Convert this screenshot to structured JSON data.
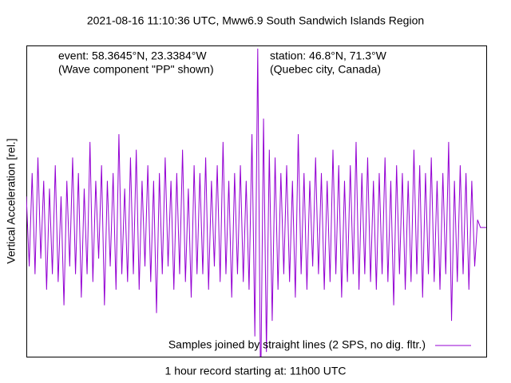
{
  "chart_data": {
    "type": "line",
    "title": "2021-08-16 11:10:36 UTC, Mww6.9 South Sandwich Islands Region",
    "xlabel": "1 hour record starting at: 11h00 UTC",
    "ylabel": "Vertical Acceleration [rel.]",
    "annotations": [
      "event: 58.3645°N, 23.3384°W",
      "(Wave component \"PP\" shown)",
      "station: 46.8°N, 71.3°W",
      "(Quebec city, Canada)"
    ],
    "ylim": [
      -0.83,
      1.17
    ],
    "legend": "lower right",
    "series": [
      {
        "name": "Samples joined by straight lines (2 SPS, no dig. fltr.)",
        "color": "#9400d3",
        "values": [
          0.2,
          -0.25,
          0.35,
          -0.3,
          0.45,
          -0.2,
          0.3,
          -0.4,
          0.25,
          -0.3,
          0.4,
          -0.35,
          0.2,
          -0.5,
          0.3,
          -0.25,
          0.45,
          -0.3,
          0.35,
          -0.45,
          0.25,
          -0.3,
          0.55,
          -0.35,
          0.3,
          -0.2,
          0.4,
          -0.5,
          0.3,
          -0.25,
          0.35,
          -0.4,
          0.6,
          -0.3,
          0.25,
          -0.35,
          0.45,
          -0.3,
          0.5,
          -0.4,
          0.3,
          -0.25,
          0.4,
          -0.35,
          0.3,
          -0.55,
          0.35,
          -0.3,
          0.45,
          -0.25,
          0.3,
          -0.4,
          0.35,
          -0.3,
          0.5,
          -0.35,
          0.25,
          -0.45,
          0.4,
          -0.3,
          0.35,
          -0.3,
          0.45,
          -0.4,
          0.3,
          -0.25,
          0.4,
          -0.35,
          0.55,
          -0.3,
          0.3,
          -0.45,
          0.35,
          -0.3,
          0.4,
          -0.35,
          0.3,
          -0.4,
          0.6,
          -0.7,
          1.15,
          -1.1,
          0.7,
          -0.8,
          0.5,
          -0.6,
          0.45,
          -0.4,
          0.35,
          -0.3,
          0.4,
          -0.35,
          0.3,
          -0.45,
          0.6,
          -0.3,
          0.35,
          -0.4,
          0.3,
          -0.25,
          0.45,
          -0.3,
          0.35,
          -0.4,
          0.3,
          -0.35,
          0.5,
          -0.3,
          0.4,
          -0.45,
          0.3,
          -0.35,
          0.4,
          -0.3,
          0.55,
          -0.4,
          0.35,
          -0.3,
          0.45,
          -0.35,
          0.3,
          -0.4,
          0.35,
          -0.3,
          0.45,
          -0.35,
          0.3,
          -0.5,
          0.4,
          -0.3,
          0.35,
          -0.4,
          0.3,
          -0.35,
          0.5,
          -0.3,
          0.4,
          -0.45,
          0.35,
          -0.3,
          0.45,
          -0.35,
          0.3,
          -0.4,
          0.35,
          -0.3,
          0.55,
          -0.6,
          0.3,
          -0.35,
          0.4,
          -0.3,
          0.35,
          -0.4,
          0.3,
          -0.25,
          0.05,
          0,
          0,
          0
        ]
      }
    ]
  }
}
